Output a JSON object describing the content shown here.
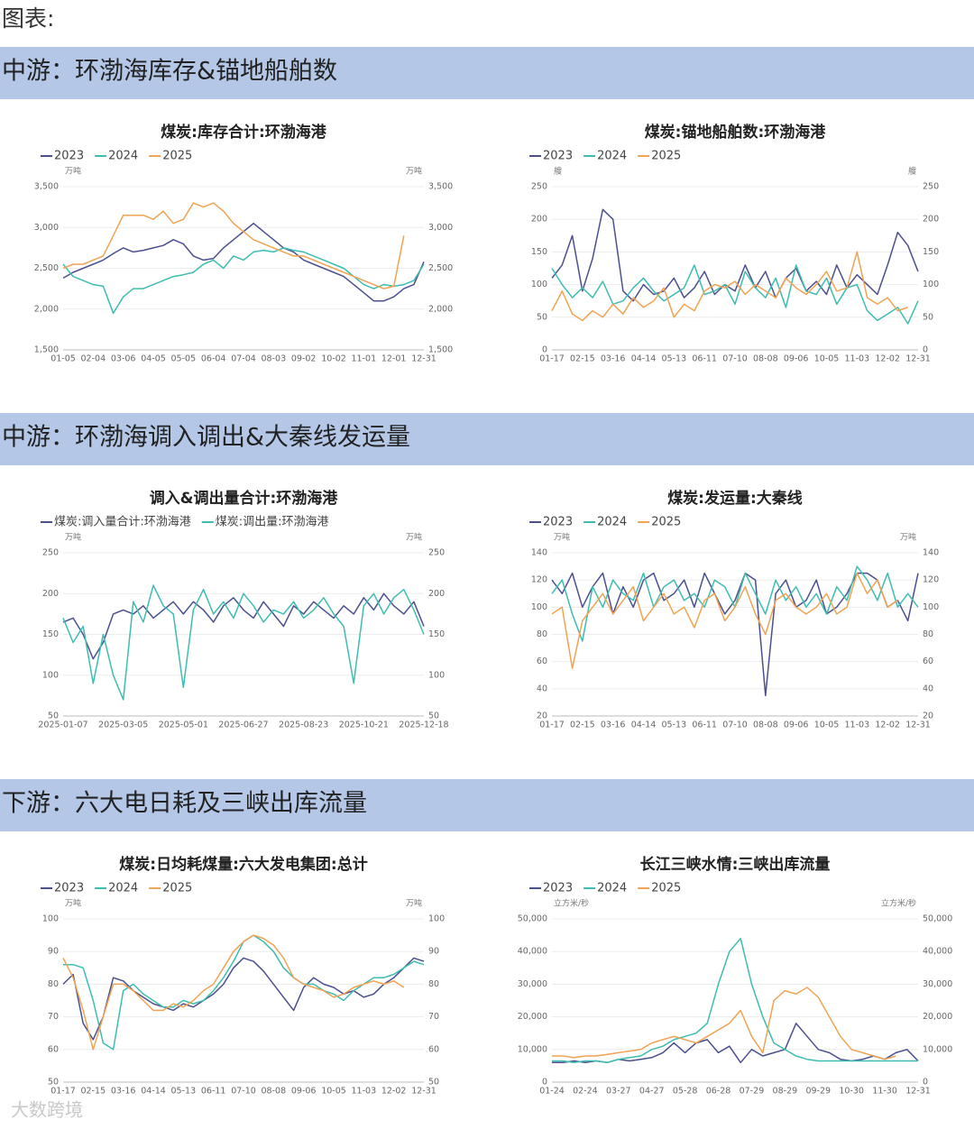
{
  "header": {
    "title": "图表:",
    "watermark": "大数跨境"
  },
  "sections": [
    {
      "title": "中游：环渤海库存&锚地船舶数"
    },
    {
      "title": "中游：环渤海调入调出&大秦线发运量"
    },
    {
      "title": "下游：六大电日耗及三峡出库流量"
    }
  ],
  "chart_data": [
    {
      "type": "line",
      "title": "煤炭:库存合计:环渤海港",
      "unit": "万吨",
      "categories": [
        "01-05",
        null,
        null,
        "02-04",
        null,
        null,
        "03-06",
        null,
        null,
        "04-05",
        null,
        null,
        "05-05",
        null,
        null,
        "06-04",
        null,
        null,
        "07-04",
        null,
        null,
        "08-03",
        null,
        null,
        "09-02",
        null,
        null,
        "10-02",
        null,
        null,
        "11-01",
        null,
        null,
        "12-01",
        null,
        null,
        "12-31"
      ],
      "ylim": [
        1500,
        3500
      ],
      "yticks": [
        {
          "value": 1500,
          "label": "1,500"
        },
        {
          "value": 2000,
          "label": "2,000"
        },
        {
          "value": 2500,
          "label": "2,500"
        },
        {
          "value": 3000,
          "label": "3,000"
        },
        {
          "value": 3500,
          "label": "3,500"
        }
      ],
      "grid": true,
      "series": [
        {
          "name": "2023",
          "color": "#4b4f8f",
          "values": [
            2380,
            2450,
            2500,
            2550,
            2600,
            2680,
            2750,
            2700,
            2720,
            2750,
            2780,
            2850,
            2800,
            2650,
            2600,
            2620,
            2750,
            2850,
            2950,
            3050,
            2950,
            2850,
            2750,
            2700,
            2600,
            2550,
            2500,
            2450,
            2400,
            2300,
            2200,
            2100,
            2100,
            2150,
            2250,
            2300,
            2580
          ]
        },
        {
          "name": "2024",
          "color": "#3dbdb0",
          "values": [
            2550,
            2400,
            2350,
            2300,
            2280,
            1950,
            2150,
            2250,
            2250,
            2300,
            2350,
            2400,
            2420,
            2450,
            2550,
            2600,
            2500,
            2650,
            2600,
            2700,
            2720,
            2700,
            2750,
            2720,
            2700,
            2650,
            2600,
            2550,
            2500,
            2400,
            2300,
            2250,
            2300,
            2280,
            2300,
            2350,
            2550
          ]
        },
        {
          "name": "2025",
          "color": "#f0a352",
          "values": [
            2500,
            2550,
            2550,
            2600,
            2650,
            2900,
            3150,
            3150,
            3150,
            3100,
            3200,
            3050,
            3100,
            3300,
            3250,
            3300,
            3200,
            3050,
            2950,
            2850,
            2800,
            2750,
            2700,
            2650,
            2650,
            2600,
            2550,
            2500,
            2450,
            2400,
            2350,
            2300,
            2250,
            2280,
            2900,
            null,
            null
          ]
        }
      ]
    },
    {
      "type": "line",
      "title": "煤炭:锚地船舶数:环渤海港",
      "unit": "艘",
      "categories": [
        "01-17",
        null,
        null,
        "02-15",
        null,
        null,
        "03-16",
        null,
        null,
        "04-14",
        null,
        null,
        "05-13",
        null,
        null,
        "06-11",
        null,
        null,
        "07-10",
        null,
        null,
        "08-08",
        null,
        null,
        "09-06",
        null,
        null,
        "10-05",
        null,
        null,
        "11-03",
        null,
        null,
        "12-02",
        null,
        null,
        "12-31"
      ],
      "ylim": [
        0,
        250
      ],
      "yticks": [
        0,
        50,
        100,
        150,
        200,
        250
      ],
      "grid": true,
      "series": [
        {
          "name": "2023",
          "color": "#4b4f8f",
          "values": [
            110,
            130,
            175,
            90,
            140,
            215,
            200,
            90,
            75,
            100,
            85,
            90,
            110,
            80,
            95,
            120,
            85,
            100,
            90,
            130,
            95,
            120,
            80,
            110,
            125,
            90,
            105,
            85,
            130,
            95,
            115,
            100,
            85,
            130,
            180,
            160,
            120
          ]
        },
        {
          "name": "2024",
          "color": "#3dbdb0",
          "values": [
            125,
            100,
            80,
            95,
            80,
            105,
            70,
            75,
            95,
            110,
            90,
            75,
            85,
            95,
            130,
            85,
            90,
            100,
            70,
            120,
            95,
            80,
            110,
            65,
            130,
            90,
            85,
            110,
            70,
            95,
            100,
            60,
            45,
            55,
            65,
            40,
            75
          ]
        },
        {
          "name": "2025",
          "color": "#f0a352",
          "values": [
            60,
            90,
            55,
            45,
            60,
            50,
            70,
            55,
            80,
            65,
            75,
            95,
            50,
            70,
            60,
            90,
            100,
            95,
            105,
            85,
            100,
            90,
            80,
            110,
            95,
            85,
            100,
            120,
            90,
            95,
            150,
            80,
            70,
            80,
            60,
            65,
            null
          ]
        }
      ]
    },
    {
      "type": "line",
      "title": "调入&调出量合计:环渤海港",
      "unit": "万吨",
      "categories": [
        "2025-01-07",
        null,
        null,
        null,
        null,
        null,
        "2025-03-05",
        null,
        null,
        null,
        null,
        null,
        "2025-05-01",
        null,
        null,
        null,
        null,
        null,
        "2025-06-27",
        null,
        null,
        null,
        null,
        null,
        "2025-08-23",
        null,
        null,
        null,
        null,
        null,
        "2025-10-21",
        null,
        null,
        null,
        null,
        null,
        "2025-12-18"
      ],
      "ylim": [
        50,
        250
      ],
      "yticks": [
        50,
        100,
        150,
        200,
        250
      ],
      "grid": true,
      "series": [
        {
          "name": "煤炭:调入量合计:环渤海港",
          "color": "#4b4f8f",
          "values": [
            165,
            170,
            150,
            120,
            140,
            175,
            180,
            175,
            185,
            170,
            180,
            190,
            175,
            190,
            180,
            165,
            185,
            195,
            180,
            170,
            190,
            175,
            160,
            185,
            175,
            190,
            180,
            170,
            185,
            175,
            195,
            180,
            200,
            185,
            175,
            190,
            160
          ]
        },
        {
          "name": "煤炭:调出量:环渤海港",
          "color": "#3dbdb0",
          "values": [
            170,
            140,
            160,
            90,
            150,
            100,
            70,
            190,
            165,
            210,
            185,
            175,
            85,
            180,
            205,
            175,
            190,
            170,
            200,
            185,
            165,
            180,
            175,
            190,
            170,
            180,
            195,
            175,
            160,
            90,
            185,
            200,
            175,
            195,
            205,
            180,
            150
          ]
        }
      ]
    },
    {
      "type": "line",
      "title": "煤炭:发运量:大秦线",
      "unit": "万吨",
      "categories": [
        "01-17",
        null,
        null,
        "02-15",
        null,
        null,
        "03-16",
        null,
        null,
        "04-14",
        null,
        null,
        "05-13",
        null,
        null,
        "06-11",
        null,
        null,
        "07-10",
        null,
        null,
        "08-08",
        null,
        null,
        "09-06",
        null,
        null,
        "10-05",
        null,
        null,
        "11-03",
        null,
        null,
        "12-02",
        null,
        null,
        "12-31"
      ],
      "ylim": [
        20,
        140
      ],
      "yticks": [
        20,
        40,
        60,
        80,
        100,
        120,
        140
      ],
      "grid": true,
      "series": [
        {
          "name": "2023",
          "color": "#4b4f8f",
          "values": [
            120,
            110,
            125,
            100,
            115,
            125,
            95,
            115,
            100,
            120,
            125,
            105,
            110,
            120,
            100,
            125,
            110,
            95,
            105,
            125,
            120,
            35,
            110,
            120,
            100,
            105,
            120,
            95,
            100,
            110,
            125,
            125,
            120,
            100,
            105,
            90,
            125
          ]
        },
        {
          "name": "2024",
          "color": "#3dbdb0",
          "values": [
            110,
            120,
            95,
            75,
            115,
            100,
            120,
            110,
            105,
            125,
            100,
            115,
            120,
            105,
            110,
            100,
            120,
            115,
            100,
            125,
            110,
            95,
            120,
            105,
            115,
            100,
            110,
            95,
            115,
            105,
            130,
            120,
            105,
            125,
            100,
            110,
            100
          ]
        },
        {
          "name": "2025",
          "color": "#f0a352",
          "values": [
            95,
            100,
            55,
            90,
            100,
            110,
            95,
            105,
            115,
            90,
            100,
            110,
            95,
            100,
            85,
            105,
            110,
            90,
            100,
            115,
            95,
            80,
            105,
            110,
            100,
            95,
            100,
            110,
            95,
            100,
            125,
            110,
            120,
            100,
            105,
            null,
            null
          ]
        }
      ]
    },
    {
      "type": "line",
      "title": "煤炭:日均耗煤量:六大发电集团:总计",
      "unit": "万吨",
      "categories": [
        "01-17",
        null,
        null,
        "02-15",
        null,
        null,
        "03-16",
        null,
        null,
        "04-14",
        null,
        null,
        "05-13",
        null,
        null,
        "06-11",
        null,
        null,
        "07-10",
        null,
        null,
        "08-08",
        null,
        null,
        "09-06",
        null,
        null,
        "10-05",
        null,
        null,
        "11-03",
        null,
        null,
        "12-02",
        null,
        null,
        "12-31"
      ],
      "ylim": [
        50,
        100
      ],
      "yticks": [
        50,
        60,
        70,
        80,
        90,
        100
      ],
      "grid": true,
      "series": [
        {
          "name": "2023",
          "color": "#4b4f8f",
          "values": [
            80,
            83,
            68,
            63,
            70,
            82,
            81,
            78,
            76,
            74,
            73,
            72,
            74,
            73,
            75,
            77,
            80,
            85,
            88,
            87,
            84,
            80,
            76,
            72,
            79,
            82,
            80,
            79,
            77,
            78,
            76,
            77,
            80,
            82,
            85,
            88,
            87
          ]
        },
        {
          "name": "2024",
          "color": "#3dbdb0",
          "values": [
            86,
            86,
            85,
            75,
            62,
            60,
            78,
            80,
            77,
            75,
            73,
            73,
            75,
            74,
            75,
            78,
            82,
            87,
            93,
            95,
            93,
            90,
            85,
            82,
            80,
            80,
            78,
            77,
            75,
            78,
            80,
            82,
            82,
            83,
            85,
            87,
            86
          ]
        },
        {
          "name": "2025",
          "color": "#f0a352",
          "values": [
            88,
            82,
            72,
            60,
            70,
            80,
            80,
            78,
            75,
            72,
            72,
            74,
            73,
            75,
            78,
            80,
            85,
            90,
            93,
            95,
            94,
            92,
            88,
            82,
            80,
            79,
            78,
            76,
            77,
            79,
            80,
            81,
            80,
            81,
            79,
            null,
            null
          ]
        }
      ]
    },
    {
      "type": "line",
      "title": "长江三峡水情:三峡出库流量",
      "unit": "立方米/秒",
      "categories": [
        "01-24",
        null,
        null,
        "02-24",
        null,
        null,
        "03-27",
        null,
        null,
        "04-27",
        null,
        null,
        "05-28",
        null,
        null,
        "06-28",
        null,
        null,
        "07-29",
        null,
        null,
        "08-29",
        null,
        null,
        "09-29",
        null,
        null,
        "10-30",
        null,
        null,
        "11-30",
        null,
        null,
        "12-31"
      ],
      "ylim": [
        0,
        50000
      ],
      "yticks": [
        0,
        {
          "value": 10000,
          "label": "10,000"
        },
        {
          "value": 20000,
          "label": "20,000"
        },
        {
          "value": 30000,
          "label": "30,000"
        },
        {
          "value": 40000,
          "label": "40,000"
        },
        {
          "value": 50000,
          "label": "50,000"
        }
      ],
      "grid": true,
      "series": [
        {
          "name": "2023",
          "color": "#4b4f8f",
          "values": [
            6000,
            6000,
            6500,
            6000,
            6500,
            6000,
            7000,
            6500,
            7000,
            7500,
            9000,
            12000,
            9000,
            12000,
            13000,
            9000,
            11000,
            6000,
            10000,
            8000,
            9000,
            10000,
            18000,
            14000,
            10000,
            9000,
            7000,
            6500,
            7000,
            8000,
            7000,
            9000,
            10000,
            6500
          ]
        },
        {
          "name": "2024",
          "color": "#3dbdb0",
          "values": [
            6500,
            6500,
            6000,
            6500,
            6500,
            6000,
            7000,
            7500,
            8000,
            10000,
            11000,
            13000,
            14000,
            15000,
            18000,
            30000,
            40000,
            44000,
            30000,
            20000,
            12000,
            10000,
            8000,
            7000,
            6500,
            6500,
            6500,
            6500,
            6500,
            6500,
            6500,
            6500,
            6500,
            6500
          ]
        },
        {
          "name": "2025",
          "color": "#f0a352",
          "values": [
            8000,
            8000,
            7500,
            8000,
            8000,
            8500,
            9000,
            9500,
            10000,
            12000,
            13000,
            14000,
            13000,
            12000,
            14000,
            16000,
            18000,
            22000,
            14000,
            9000,
            25000,
            28000,
            27000,
            29000,
            26000,
            20000,
            14000,
            10000,
            9000,
            8000,
            7000,
            8000,
            null,
            null
          ]
        }
      ]
    }
  ]
}
